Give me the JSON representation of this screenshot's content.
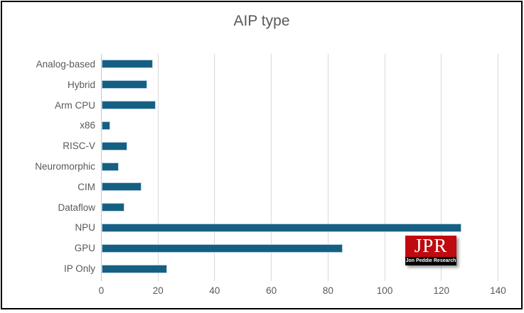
{
  "chart_data": {
    "type": "bar",
    "orientation": "horizontal",
    "title": "AIP type",
    "categories": [
      "Analog-based",
      "Hybrid",
      "Arm CPU",
      "x86",
      "RISC-V",
      "Neuromorphic",
      "CIM",
      "Dataflow",
      "NPU",
      "GPU",
      "IP Only"
    ],
    "values": [
      18,
      16,
      19,
      3,
      9,
      6,
      14,
      8,
      127,
      85,
      23
    ],
    "xlabel": "",
    "ylabel": "",
    "xlim": [
      0,
      140
    ],
    "x_ticks": [
      0,
      20,
      40,
      60,
      80,
      100,
      120,
      140
    ],
    "grid": true,
    "legend": "none",
    "colors": {
      "bar_fill": "#156082",
      "bar_border": "#b7d0e2",
      "gridline": "#d9d9d9",
      "axis_line": "#c9c9c9",
      "text": "#595959",
      "frame_border": "#000000",
      "background": "#ffffff"
    }
  },
  "logo": {
    "acronym": "JPR",
    "subtitle": "Jon Peddie Research",
    "background_color": "#bf0a10",
    "strip_color": "#000000",
    "text_color": "#ffffff"
  }
}
